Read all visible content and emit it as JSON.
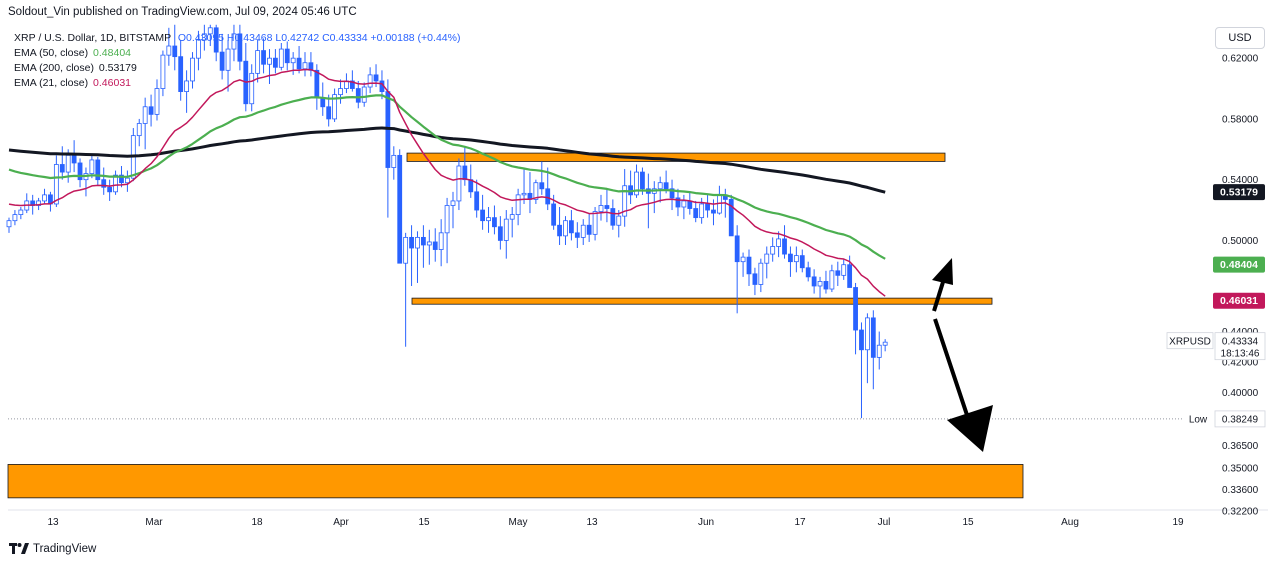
{
  "header": {
    "published": "Soldout_Vin published on TradingView.com, Jul 09, 2024 05:46 UTC",
    "currency_button": "USD"
  },
  "legend": {
    "symbol_line": "XRP / U.S. Dollar, 1D, BITSTAMP",
    "ohlc": "O0.43095 H0.43468 L0.42742 C0.43334 +0.00188 (+0.44%)",
    "indicators": [
      {
        "label": "EMA (50, close)",
        "value": "0.48404",
        "color": "#4caf50"
      },
      {
        "label": "EMA (200, close)",
        "value": "0.53179",
        "color": "#131722"
      },
      {
        "label": "EMA (21, close)",
        "value": "0.46031",
        "color": "#c2185b"
      }
    ]
  },
  "footer": {
    "brand": "TradingView"
  },
  "chart_data": {
    "type": "candlestick",
    "symbol": "XRPUSD",
    "y_axis": {
      "range": [
        0.3225,
        0.6425
      ],
      "ticks": [
        "0.62000",
        "0.58000",
        "0.54000",
        "0.50000",
        "0.46000",
        "0.44000",
        "0.42000",
        "0.40000",
        "0.38000",
        "0.36500",
        "0.35000",
        "0.33600",
        "0.32200"
      ]
    },
    "x_axis_labels": [
      "13",
      "Mar",
      "18",
      "Apr",
      "15",
      "May",
      "13",
      "Jun",
      "17",
      "Jul",
      "15",
      "Aug",
      "19"
    ],
    "price_labels": [
      {
        "text": "0.53179",
        "value": 0.53179,
        "bg": "#131722",
        "fg": "#ffffff"
      },
      {
        "text": "0.48404",
        "value": 0.48404,
        "bg": "#4caf50",
        "fg": "#ffffff"
      },
      {
        "text": "0.46031",
        "value": 0.46031,
        "bg": "#c2185b",
        "fg": "#ffffff"
      }
    ],
    "current": {
      "name": "XRPUSD",
      "price": "0.43334",
      "countdown": "18:13:46",
      "value": 0.43334
    },
    "low_marker": {
      "label": "Low",
      "price": "0.38249",
      "value": 0.38249
    },
    "zones": [
      {
        "top": 0.5575,
        "bottom": 0.552,
        "color": "#ff9800"
      },
      {
        "top": 0.462,
        "bottom": 0.458,
        "color": "#ff9800"
      },
      {
        "top": 0.3525,
        "bottom": 0.3305,
        "color": "#ff9800"
      }
    ],
    "ema_colors": {
      "ema50": "#4caf50",
      "ema200": "#131722",
      "ema21": "#c2185b"
    },
    "candles": [
      [
        0.509,
        0.515,
        0.505,
        0.513
      ],
      [
        0.513,
        0.52,
        0.51,
        0.517
      ],
      [
        0.517,
        0.522,
        0.514,
        0.52
      ],
      [
        0.52,
        0.531,
        0.518,
        0.526
      ],
      [
        0.526,
        0.53,
        0.517,
        0.523
      ],
      [
        0.523,
        0.528,
        0.52,
        0.526
      ],
      [
        0.526,
        0.534,
        0.524,
        0.53
      ],
      [
        0.53,
        0.532,
        0.519,
        0.524
      ],
      [
        0.524,
        0.556,
        0.522,
        0.55
      ],
      [
        0.55,
        0.562,
        0.54,
        0.545
      ],
      [
        0.545,
        0.56,
        0.538,
        0.556
      ],
      [
        0.556,
        0.566,
        0.545,
        0.551
      ],
      [
        0.551,
        0.554,
        0.535,
        0.54
      ],
      [
        0.54,
        0.548,
        0.529,
        0.544
      ],
      [
        0.544,
        0.556,
        0.541,
        0.553
      ],
      [
        0.553,
        0.555,
        0.536,
        0.54
      ],
      [
        0.54,
        0.548,
        0.53,
        0.535
      ],
      [
        0.535,
        0.54,
        0.526,
        0.532
      ],
      [
        0.532,
        0.546,
        0.53,
        0.543
      ],
      [
        0.543,
        0.549,
        0.535,
        0.538
      ],
      [
        0.538,
        0.546,
        0.532,
        0.541
      ],
      [
        0.541,
        0.574,
        0.539,
        0.569
      ],
      [
        0.569,
        0.58,
        0.562,
        0.577
      ],
      [
        0.577,
        0.594,
        0.56,
        0.588
      ],
      [
        0.588,
        0.596,
        0.575,
        0.583
      ],
      [
        0.583,
        0.606,
        0.579,
        0.6
      ],
      [
        0.6,
        0.625,
        0.595,
        0.622
      ],
      [
        0.622,
        0.64,
        0.615,
        0.628
      ],
      [
        0.628,
        0.642,
        0.612,
        0.621
      ],
      [
        0.621,
        0.632,
        0.592,
        0.598
      ],
      [
        0.598,
        0.612,
        0.584,
        0.605
      ],
      [
        0.605,
        0.624,
        0.6,
        0.62
      ],
      [
        0.62,
        0.638,
        0.612,
        0.632
      ],
      [
        0.632,
        0.642,
        0.625,
        0.636
      ],
      [
        0.636,
        0.642,
        0.628,
        0.64
      ],
      [
        0.64,
        0.642,
        0.618,
        0.624
      ],
      [
        0.624,
        0.636,
        0.606,
        0.612
      ],
      [
        0.612,
        0.632,
        0.598,
        0.626
      ],
      [
        0.626,
        0.642,
        0.618,
        0.636
      ],
      [
        0.636,
        0.642,
        0.612,
        0.618
      ],
      [
        0.618,
        0.63,
        0.585,
        0.59
      ],
      [
        0.59,
        0.616,
        0.585,
        0.61
      ],
      [
        0.61,
        0.632,
        0.604,
        0.625
      ],
      [
        0.625,
        0.633,
        0.61,
        0.616
      ],
      [
        0.616,
        0.626,
        0.603,
        0.62
      ],
      [
        0.62,
        0.626,
        0.61,
        0.614
      ],
      [
        0.614,
        0.63,
        0.612,
        0.626
      ],
      [
        0.626,
        0.631,
        0.612,
        0.617
      ],
      [
        0.617,
        0.624,
        0.609,
        0.62
      ],
      [
        0.62,
        0.628,
        0.61,
        0.613
      ],
      [
        0.613,
        0.624,
        0.608,
        0.617
      ],
      [
        0.617,
        0.624,
        0.608,
        0.612
      ],
      [
        0.612,
        0.616,
        0.586,
        0.594
      ],
      [
        0.594,
        0.604,
        0.582,
        0.588
      ],
      [
        0.588,
        0.596,
        0.575,
        0.58
      ],
      [
        0.58,
        0.6,
        0.578,
        0.596
      ],
      [
        0.596,
        0.606,
        0.59,
        0.6
      ],
      [
        0.6,
        0.61,
        0.597,
        0.605
      ],
      [
        0.605,
        0.612,
        0.598,
        0.6
      ],
      [
        0.6,
        0.605,
        0.587,
        0.591
      ],
      [
        0.591,
        0.604,
        0.588,
        0.601
      ],
      [
        0.601,
        0.614,
        0.597,
        0.609
      ],
      [
        0.609,
        0.616,
        0.601,
        0.605
      ],
      [
        0.605,
        0.612,
        0.593,
        0.598
      ],
      [
        0.598,
        0.606,
        0.515,
        0.548
      ],
      [
        0.548,
        0.562,
        0.54,
        0.556
      ],
      [
        0.556,
        0.56,
        0.485,
        0.485
      ],
      [
        0.485,
        0.505,
        0.43,
        0.502
      ],
      [
        0.502,
        0.51,
        0.47,
        0.495
      ],
      [
        0.495,
        0.506,
        0.472,
        0.502
      ],
      [
        0.502,
        0.51,
        0.482,
        0.497
      ],
      [
        0.497,
        0.507,
        0.484,
        0.499
      ],
      [
        0.499,
        0.508,
        0.486,
        0.494
      ],
      [
        0.494,
        0.514,
        0.483,
        0.505
      ],
      [
        0.505,
        0.528,
        0.485,
        0.523
      ],
      [
        0.523,
        0.532,
        0.508,
        0.526
      ],
      [
        0.526,
        0.554,
        0.52,
        0.549
      ],
      [
        0.549,
        0.562,
        0.536,
        0.54
      ],
      [
        0.54,
        0.55,
        0.528,
        0.532
      ],
      [
        0.532,
        0.54,
        0.515,
        0.52
      ],
      [
        0.52,
        0.53,
        0.507,
        0.513
      ],
      [
        0.513,
        0.522,
        0.505,
        0.515
      ],
      [
        0.515,
        0.523,
        0.504,
        0.509
      ],
      [
        0.509,
        0.516,
        0.494,
        0.5
      ],
      [
        0.5,
        0.52,
        0.488,
        0.514
      ],
      [
        0.514,
        0.522,
        0.502,
        0.517
      ],
      [
        0.517,
        0.534,
        0.51,
        0.53
      ],
      [
        0.53,
        0.548,
        0.524,
        0.531
      ],
      [
        0.531,
        0.545,
        0.518,
        0.527
      ],
      [
        0.527,
        0.54,
        0.524,
        0.538
      ],
      [
        0.538,
        0.552,
        0.53,
        0.534
      ],
      [
        0.534,
        0.548,
        0.52,
        0.524
      ],
      [
        0.524,
        0.53,
        0.507,
        0.51
      ],
      [
        0.51,
        0.522,
        0.497,
        0.503
      ],
      [
        0.503,
        0.516,
        0.497,
        0.513
      ],
      [
        0.513,
        0.52,
        0.5,
        0.505
      ],
      [
        0.505,
        0.512,
        0.495,
        0.502
      ],
      [
        0.502,
        0.514,
        0.497,
        0.51
      ],
      [
        0.51,
        0.518,
        0.499,
        0.504
      ],
      [
        0.504,
        0.522,
        0.5,
        0.519
      ],
      [
        0.519,
        0.53,
        0.513,
        0.523
      ],
      [
        0.523,
        0.534,
        0.512,
        0.521
      ],
      [
        0.521,
        0.527,
        0.507,
        0.51
      ],
      [
        0.51,
        0.52,
        0.502,
        0.516
      ],
      [
        0.516,
        0.547,
        0.509,
        0.536
      ],
      [
        0.536,
        0.546,
        0.524,
        0.53
      ],
      [
        0.53,
        0.55,
        0.528,
        0.545
      ],
      [
        0.545,
        0.548,
        0.53,
        0.534
      ],
      [
        0.534,
        0.544,
        0.508,
        0.531
      ],
      [
        0.531,
        0.539,
        0.518,
        0.534
      ],
      [
        0.534,
        0.542,
        0.525,
        0.538
      ],
      [
        0.538,
        0.546,
        0.531,
        0.534
      ],
      [
        0.534,
        0.54,
        0.52,
        0.528
      ],
      [
        0.528,
        0.534,
        0.516,
        0.522
      ],
      [
        0.522,
        0.53,
        0.514,
        0.526
      ],
      [
        0.526,
        0.532,
        0.517,
        0.521
      ],
      [
        0.521,
        0.526,
        0.512,
        0.515
      ],
      [
        0.515,
        0.528,
        0.511,
        0.524
      ],
      [
        0.524,
        0.53,
        0.515,
        0.52
      ],
      [
        0.52,
        0.527,
        0.51,
        0.518
      ],
      [
        0.518,
        0.536,
        0.517,
        0.53
      ],
      [
        0.53,
        0.534,
        0.515,
        0.527
      ],
      [
        0.527,
        0.53,
        0.505,
        0.503
      ],
      [
        0.503,
        0.51,
        0.452,
        0.486
      ],
      [
        0.486,
        0.492,
        0.476,
        0.489
      ],
      [
        0.489,
        0.494,
        0.47,
        0.478
      ],
      [
        0.478,
        0.482,
        0.464,
        0.471
      ],
      [
        0.471,
        0.488,
        0.466,
        0.485
      ],
      [
        0.485,
        0.496,
        0.475,
        0.491
      ],
      [
        0.491,
        0.502,
        0.486,
        0.496
      ],
      [
        0.496,
        0.506,
        0.489,
        0.501
      ],
      [
        0.501,
        0.51,
        0.488,
        0.491
      ],
      [
        0.491,
        0.496,
        0.476,
        0.486
      ],
      [
        0.486,
        0.496,
        0.479,
        0.49
      ],
      [
        0.49,
        0.494,
        0.479,
        0.482
      ],
      [
        0.482,
        0.486,
        0.473,
        0.476
      ],
      [
        0.476,
        0.481,
        0.465,
        0.47
      ],
      [
        0.47,
        0.476,
        0.462,
        0.473
      ],
      [
        0.473,
        0.48,
        0.465,
        0.468
      ],
      [
        0.468,
        0.484,
        0.466,
        0.48
      ],
      [
        0.48,
        0.486,
        0.47,
        0.477
      ],
      [
        0.477,
        0.488,
        0.474,
        0.484
      ],
      [
        0.484,
        0.49,
        0.47,
        0.469
      ],
      [
        0.469,
        0.472,
        0.425,
        0.441
      ],
      [
        0.441,
        0.446,
        0.383,
        0.428
      ],
      [
        0.428,
        0.452,
        0.406,
        0.449
      ],
      [
        0.449,
        0.454,
        0.402,
        0.423
      ],
      [
        0.423,
        0.44,
        0.415,
        0.431
      ],
      [
        0.431,
        0.435,
        0.427,
        0.433
      ]
    ]
  }
}
